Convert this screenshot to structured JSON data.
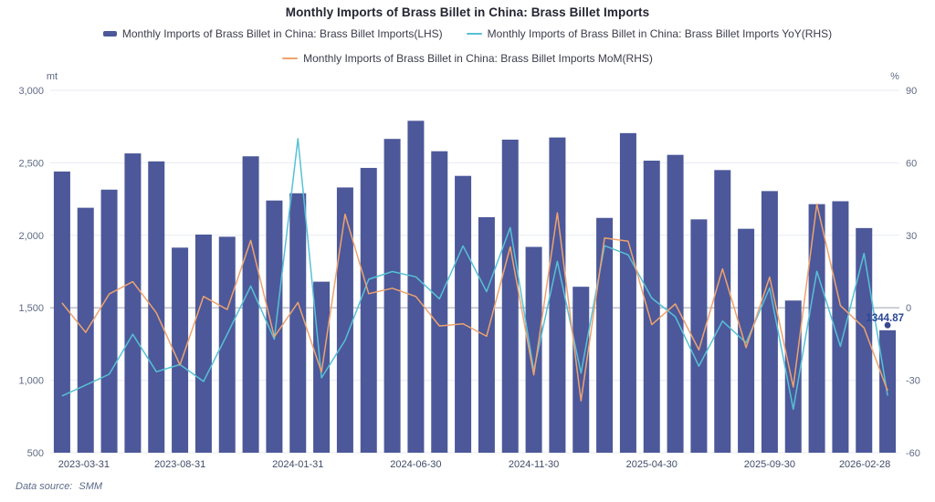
{
  "title": "Monthly Imports of Brass Billet in China: Brass Billet Imports",
  "legend": [
    {
      "label": "Monthly Imports of Brass Billet in China: Brass Billet Imports(LHS)",
      "type": "bar",
      "color": "#4c5899"
    },
    {
      "label": "Monthly Imports of Brass Billet in China: Brass Billet Imports YoY(RHS)",
      "type": "line",
      "color": "#56c1d6"
    },
    {
      "label": "Monthly Imports of Brass Billet in China: Brass Billet Imports MoM(RHS)",
      "type": "line",
      "color": "#eea36f"
    }
  ],
  "source": {
    "label": "Data source:",
    "value": "SMM"
  },
  "chart_data": {
    "type": "bar",
    "title": "Monthly Imports of Brass Billet in China: Brass Billet Imports",
    "categories": [
      "2023-03-31",
      "2023-04-30",
      "2023-05-31",
      "2023-06-30",
      "2023-07-31",
      "2023-08-31",
      "2023-09-30",
      "2023-10-31",
      "2023-11-30",
      "2023-12-31",
      "2024-01-31",
      "2024-02-29",
      "2024-03-31",
      "2024-04-30",
      "2024-05-31",
      "2024-06-30",
      "2024-07-31",
      "2024-08-31",
      "2024-09-30",
      "2024-10-31",
      "2024-11-30",
      "2024-12-31",
      "2025-01-31",
      "2025-02-28",
      "2025-03-31",
      "2025-04-30",
      "2025-05-31",
      "2025-06-30",
      "2025-07-31",
      "2025-08-31",
      "2025-09-30",
      "2025-10-31",
      "2025-11-30",
      "2025-12-31",
      "2026-01-31",
      "2026-02-28"
    ],
    "x_tick_labels": [
      "2023-03-31",
      "2023-08-31",
      "2024-01-31",
      "2024-06-30",
      "2024-11-30",
      "2025-04-30",
      "2025-09-30",
      "2026-02-28"
    ],
    "x_tick_indices": [
      0,
      5,
      10,
      15,
      20,
      25,
      30,
      35
    ],
    "series": [
      {
        "name": "Monthly Imports of Brass Billet in China: Brass Billet Imports(LHS)",
        "type": "bar",
        "axis": "left",
        "unit": "mt",
        "color": "#4c5899",
        "values": [
          2440,
          2190,
          2315,
          2565,
          2510,
          1915,
          2005,
          1990,
          2545,
          2240,
          2290,
          1680,
          2330,
          2465,
          2665,
          2790,
          2580,
          2410,
          2125,
          2660,
          1920,
          2675,
          1645,
          2120,
          2705,
          2515,
          2555,
          2110,
          2450,
          2045,
          2305,
          1550,
          2215,
          2235,
          2050,
          1344.87
        ]
      },
      {
        "name": "Monthly Imports of Brass Billet in China: Brass Billet Imports YoY(RHS)",
        "type": "line",
        "axis": "right",
        "unit": "%",
        "color": "#56c1d6",
        "values": [
          -36.5,
          -32,
          -27.5,
          -11,
          -26.5,
          -23.5,
          -30.5,
          -11,
          9,
          -13,
          70,
          -29,
          -13.5,
          11.8,
          15,
          12.8,
          3.7,
          25.6,
          6.7,
          33.2,
          -26,
          19.2,
          -27,
          25.7,
          21.9,
          4,
          -3.7,
          -24.2,
          -5.5,
          -14.5,
          8.2,
          -42,
          15.1,
          -16,
          22.5,
          -36.4
        ]
      },
      {
        "name": "Monthly Imports of Brass Billet in China: Brass Billet Imports MoM(RHS)",
        "type": "line",
        "axis": "right",
        "unit": "%",
        "color": "#eea36f",
        "values": [
          2,
          -10.2,
          5.7,
          10.8,
          -2.1,
          -23.7,
          4.7,
          -0.7,
          27.9,
          -12,
          2.2,
          -26.6,
          38.7,
          5.8,
          8.1,
          4.7,
          -7.5,
          -6.6,
          -11.8,
          25.2,
          -27.8,
          39.3,
          -38.5,
          28.9,
          27.6,
          -7,
          1.6,
          -17.4,
          16.1,
          -16.5,
          12.7,
          -32.8,
          42.9,
          0.9,
          -8.3,
          -34.4
        ]
      }
    ],
    "left_axis": {
      "unit": "mt",
      "min": 500,
      "max": 3000,
      "tick_labels": [
        "3,000",
        "2,500",
        "2,000",
        "1,500",
        "1,000",
        "500"
      ]
    },
    "right_axis": {
      "unit": "%",
      "min": -60,
      "max": 90,
      "tick_labels": [
        "90",
        "60",
        "30",
        "0",
        "-30",
        "-60"
      ]
    },
    "last_point_label": "1344.87",
    "grid": true,
    "legend_position": "top"
  },
  "colors": {
    "bar": "#4c5899",
    "yoy_line": "#56c1d6",
    "mom_line": "#eea36f",
    "grid": "#e8ebf2",
    "zero_line": "#a9aeb9",
    "tick_text": "#5f6a84",
    "date_text": "#3f4b68",
    "value_label": "#2b4896"
  }
}
